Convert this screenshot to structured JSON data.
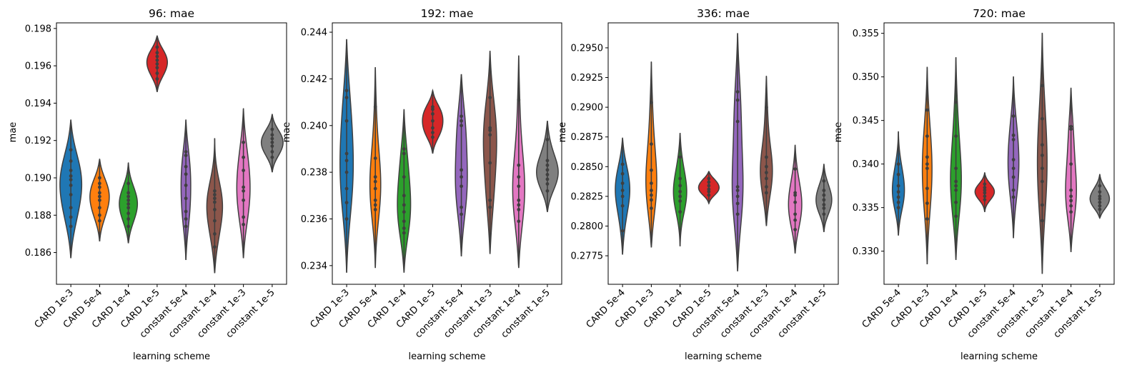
{
  "chart_data": [
    {
      "type": "violin",
      "title": "96: mae",
      "xlabel": "learning scheme",
      "ylabel": "mae",
      "ylim": [
        0.1843,
        0.1983
      ],
      "yticks": [
        0.186,
        0.188,
        0.19,
        0.192,
        0.194,
        0.196,
        0.198
      ],
      "ytick_labels": [
        "0.186",
        "0.188",
        "0.190",
        "0.192",
        "0.194",
        "0.196",
        "0.198"
      ],
      "categories": [
        "CARD 1e-3",
        "CARD 5e-4",
        "CARD 1e-4",
        "CARD 1e-5",
        "constant 5e-4",
        "constant 1e-4",
        "constant 1e-3",
        "constant 1e-5"
      ],
      "series": [
        {
          "name": "CARD 1e-3",
          "color": "#1f77b4",
          "range": [
            0.1857,
            0.1931
          ],
          "peak": 0.1899,
          "width": 0.9,
          "points": [
            0.1874,
            0.1879,
            0.1884,
            0.1891,
            0.1896,
            0.1899,
            0.1901,
            0.1904,
            0.1909,
            0.1915
          ]
        },
        {
          "name": "CARD 5e-4",
          "color": "#ff7f0e",
          "range": [
            0.1866,
            0.191
          ],
          "peak": 0.1891,
          "width": 0.8,
          "points": [
            0.1877,
            0.188,
            0.1884,
            0.1888,
            0.189,
            0.1892,
            0.1895,
            0.1897,
            0.19
          ]
        },
        {
          "name": "CARD 1e-4",
          "color": "#2ca02c",
          "range": [
            0.1865,
            0.1908
          ],
          "peak": 0.1887,
          "width": 0.75,
          "points": [
            0.1874,
            0.1878,
            0.1881,
            0.1884,
            0.1886,
            0.1888,
            0.189,
            0.1892,
            0.1897
          ]
        },
        {
          "name": "CARD 1e-5",
          "color": "#d62728",
          "range": [
            0.1946,
            0.1976
          ],
          "peak": 0.1959,
          "width": 0.85,
          "points": [
            0.1953,
            0.1956,
            0.1959,
            0.1961,
            0.1963,
            0.1965,
            0.1967,
            0.197
          ]
        },
        {
          "name": "constant 5e-4",
          "color": "#9467bd",
          "range": [
            0.1856,
            0.1931
          ],
          "peak": 0.1895,
          "width": 0.4,
          "points": [
            0.1874,
            0.1878,
            0.1882,
            0.1889,
            0.1896,
            0.1902,
            0.1906,
            0.1912,
            0.1914
          ]
        },
        {
          "name": "constant 1e-4",
          "color": "#8c564b",
          "range": [
            0.1849,
            0.1921
          ],
          "peak": 0.1888,
          "width": 0.65,
          "points": [
            0.1863,
            0.187,
            0.1877,
            0.1883,
            0.1887,
            0.1889,
            0.1891,
            0.1893
          ]
        },
        {
          "name": "constant 1e-3",
          "color": "#e377c2",
          "range": [
            0.1857,
            0.1937
          ],
          "peak": 0.1893,
          "width": 0.55,
          "points": [
            0.1875,
            0.1879,
            0.1888,
            0.1893,
            0.1895,
            0.1904,
            0.1911,
            0.1919
          ]
        },
        {
          "name": "constant 1e-5",
          "color": "#7f7f7f",
          "range": [
            0.1903,
            0.1934
          ],
          "peak": 0.1917,
          "width": 0.9,
          "points": [
            0.1911,
            0.1914,
            0.1917,
            0.1919,
            0.1921,
            0.1923,
            0.1926
          ]
        }
      ]
    },
    {
      "type": "violin",
      "title": "192: mae",
      "xlabel": "learning scheme",
      "ylabel": "mae",
      "ylim": [
        0.2332,
        0.2444
      ],
      "yticks": [
        0.234,
        0.236,
        0.238,
        0.24,
        0.242,
        0.244
      ],
      "ytick_labels": [
        "0.234",
        "0.236",
        "0.238",
        "0.240",
        "0.242",
        "0.244"
      ],
      "categories": [
        "CARD 1e-3",
        "CARD 5e-4",
        "CARD 1e-4",
        "CARD 1e-5",
        "constant 5e-4",
        "constant 1e-3",
        "constant 1e-4",
        "constant 1e-5"
      ],
      "series": [
        {
          "name": "CARD 1e-3",
          "color": "#1f77b4",
          "range": [
            0.2337,
            0.2437
          ],
          "peak": 0.2392,
          "width": 0.55,
          "points": [
            0.236,
            0.2367,
            0.2373,
            0.238,
            0.2385,
            0.2388,
            0.2402,
            0.2412,
            0.2415
          ]
        },
        {
          "name": "CARD 5e-4",
          "color": "#ff7f0e",
          "range": [
            0.2339,
            0.2425
          ],
          "peak": 0.2372,
          "width": 0.45,
          "points": [
            0.2364,
            0.2366,
            0.2368,
            0.2373,
            0.2376,
            0.2378,
            0.2386,
            0.2408
          ]
        },
        {
          "name": "CARD 1e-4",
          "color": "#2ca02c",
          "range": [
            0.2337,
            0.2407
          ],
          "peak": 0.2363,
          "width": 0.55,
          "points": [
            0.2354,
            0.2356,
            0.2359,
            0.2363,
            0.2366,
            0.237,
            0.2378,
            0.2388,
            0.239
          ]
        },
        {
          "name": "CARD 1e-5",
          "color": "#d62728",
          "range": [
            0.2388,
            0.2415
          ],
          "peak": 0.2399,
          "width": 0.85,
          "points": [
            0.2395,
            0.2397,
            0.2399,
            0.2402,
            0.2405,
            0.2407,
            0.2408
          ]
        },
        {
          "name": "constant 5e-4",
          "color": "#9467bd",
          "range": [
            0.2344,
            0.2422
          ],
          "peak": 0.2378,
          "width": 0.5,
          "points": [
            0.2362,
            0.2365,
            0.2374,
            0.2378,
            0.2381,
            0.24,
            0.2402,
            0.2404
          ]
        },
        {
          "name": "constant 1e-3",
          "color": "#8c564b",
          "range": [
            0.2345,
            0.2432
          ],
          "peak": 0.2398,
          "width": 0.55,
          "points": [
            0.2365,
            0.2368,
            0.2384,
            0.2396,
            0.2398,
            0.2399,
            0.2412
          ]
        },
        {
          "name": "constant 1e-4",
          "color": "#e377c2",
          "range": [
            0.2339,
            0.243
          ],
          "peak": 0.2368,
          "width": 0.5,
          "points": [
            0.2359,
            0.2364,
            0.2366,
            0.2368,
            0.2374,
            0.2378,
            0.2383,
            0.2411
          ]
        },
        {
          "name": "constant 1e-5",
          "color": "#7f7f7f",
          "range": [
            0.2363,
            0.2402
          ],
          "peak": 0.238,
          "width": 0.9,
          "points": [
            0.2372,
            0.2375,
            0.2377,
            0.2379,
            0.2381,
            0.2383,
            0.2385,
            0.2394
          ]
        }
      ]
    },
    {
      "type": "violin",
      "title": "336: mae",
      "xlabel": "learning scheme",
      "ylabel": "mae",
      "ylim": [
        0.2751,
        0.2971
      ],
      "yticks": [
        0.2775,
        0.28,
        0.2825,
        0.285,
        0.2875,
        0.29,
        0.2925,
        0.295
      ],
      "ytick_labels": [
        "0.2775",
        "0.2800",
        "0.2825",
        "0.2850",
        "0.2875",
        "0.2900",
        "0.2925",
        "0.2950"
      ],
      "categories": [
        "CARD 5e-4",
        "CARD 1e-3",
        "CARD 1e-4",
        "CARD 1e-5",
        "constant 5e-4",
        "constant 1e-3",
        "constant 1e-4",
        "constant 1e-5"
      ],
      "series": [
        {
          "name": "CARD 5e-4",
          "color": "#1f77b4",
          "range": [
            0.2776,
            0.2874
          ],
          "peak": 0.283,
          "width": 0.6,
          "points": [
            0.2796,
            0.2817,
            0.2825,
            0.283,
            0.2836,
            0.2844,
            0.2852
          ]
        },
        {
          "name": "CARD 1e-3",
          "color": "#ff7f0e",
          "range": [
            0.2782,
            0.2938
          ],
          "peak": 0.283,
          "width": 0.45,
          "points": [
            0.2815,
            0.2822,
            0.2826,
            0.283,
            0.2836,
            0.2847,
            0.2869,
            0.2904
          ]
        },
        {
          "name": "CARD 1e-4",
          "color": "#2ca02c",
          "range": [
            0.2783,
            0.2878
          ],
          "peak": 0.283,
          "width": 0.55,
          "points": [
            0.2812,
            0.2821,
            0.2825,
            0.2829,
            0.2834,
            0.284,
            0.2858
          ]
        },
        {
          "name": "CARD 1e-5",
          "color": "#d62728",
          "range": [
            0.2819,
            0.2846
          ],
          "peak": 0.2832,
          "width": 0.85,
          "points": [
            0.2826,
            0.2829,
            0.2831,
            0.2834,
            0.2837,
            0.284
          ]
        },
        {
          "name": "constant 5e-4",
          "color": "#9467bd",
          "range": [
            0.2762,
            0.2962
          ],
          "peak": 0.2828,
          "width": 0.45,
          "points": [
            0.281,
            0.2819,
            0.2825,
            0.283,
            0.2833,
            0.2888,
            0.2906,
            0.2913
          ]
        },
        {
          "name": "constant 1e-3",
          "color": "#8c564b",
          "range": [
            0.28,
            0.2926
          ],
          "peak": 0.2845,
          "width": 0.5,
          "points": [
            0.2828,
            0.2833,
            0.284,
            0.2845,
            0.285,
            0.2858,
            0.29
          ]
        },
        {
          "name": "constant 1e-4",
          "color": "#e377c2",
          "range": [
            0.2777,
            0.2868
          ],
          "peak": 0.2822,
          "width": 0.55,
          "points": [
            0.2797,
            0.2805,
            0.281,
            0.282,
            0.2826,
            0.2828,
            0.2848
          ]
        },
        {
          "name": "constant 1e-5",
          "color": "#7f7f7f",
          "range": [
            0.2795,
            0.2852
          ],
          "peak": 0.282,
          "width": 0.65,
          "points": [
            0.281,
            0.2815,
            0.2818,
            0.2822,
            0.2826,
            0.283,
            0.2838
          ]
        }
      ]
    },
    {
      "type": "violin",
      "title": "720: mae",
      "xlabel": "learning scheme",
      "ylabel": "mae",
      "ylim": [
        0.3262,
        0.3562
      ],
      "yticks": [
        0.33,
        0.335,
        0.34,
        0.345,
        0.35,
        0.355
      ],
      "ytick_labels": [
        "0.330",
        "0.335",
        "0.340",
        "0.345",
        "0.350",
        "0.355"
      ],
      "categories": [
        "CARD 5e-4",
        "CARD 1e-3",
        "CARD 1e-4",
        "CARD 1e-5",
        "constant 5e-4",
        "constant 1e-3",
        "constant 1e-4",
        "constant 1e-5"
      ],
      "series": [
        {
          "name": "CARD 5e-4",
          "color": "#1f77b4",
          "range": [
            0.3318,
            0.3437
          ],
          "peak": 0.3365,
          "width": 0.5,
          "points": [
            0.335,
            0.3356,
            0.3362,
            0.3368,
            0.3375,
            0.3388,
            0.34
          ]
        },
        {
          "name": "CARD 1e-3",
          "color": "#ff7f0e",
          "range": [
            0.3285,
            0.3511
          ],
          "peak": 0.3385,
          "width": 0.4,
          "points": [
            0.3337,
            0.3355,
            0.3372,
            0.3395,
            0.34,
            0.3408,
            0.3432,
            0.3462
          ]
        },
        {
          "name": "CARD 1e-4",
          "color": "#2ca02c",
          "range": [
            0.329,
            0.3522
          ],
          "peak": 0.3375,
          "width": 0.45,
          "points": [
            0.334,
            0.3356,
            0.337,
            0.3375,
            0.338,
            0.3395,
            0.3432,
            0.3471
          ]
        },
        {
          "name": "CARD 1e-5",
          "color": "#d62728",
          "range": [
            0.3345,
            0.339
          ],
          "peak": 0.3368,
          "width": 0.8,
          "points": [
            0.3359,
            0.3363,
            0.3367,
            0.337,
            0.3373,
            0.3377
          ]
        },
        {
          "name": "constant 5e-4",
          "color": "#9467bd",
          "range": [
            0.3315,
            0.35
          ],
          "peak": 0.3395,
          "width": 0.45,
          "points": [
            0.3362,
            0.337,
            0.3385,
            0.3395,
            0.3405,
            0.3428,
            0.3433,
            0.3455
          ]
        },
        {
          "name": "constant 1e-3",
          "color": "#8c564b",
          "range": [
            0.3274,
            0.355
          ],
          "peak": 0.34,
          "width": 0.4,
          "points": [
            0.3335,
            0.3353,
            0.338,
            0.3395,
            0.341,
            0.3422,
            0.3452,
            0.349
          ]
        },
        {
          "name": "constant 1e-4",
          "color": "#e377c2",
          "range": [
            0.3299,
            0.3487
          ],
          "peak": 0.336,
          "width": 0.45,
          "points": [
            0.3345,
            0.3352,
            0.3358,
            0.3363,
            0.337,
            0.34,
            0.344,
            0.3443
          ]
        },
        {
          "name": "constant 1e-5",
          "color": "#7f7f7f",
          "range": [
            0.3338,
            0.3388
          ],
          "peak": 0.336,
          "width": 0.8,
          "points": [
            0.3348,
            0.3352,
            0.3356,
            0.336,
            0.3363,
            0.3368,
            0.3375
          ]
        }
      ]
    }
  ]
}
